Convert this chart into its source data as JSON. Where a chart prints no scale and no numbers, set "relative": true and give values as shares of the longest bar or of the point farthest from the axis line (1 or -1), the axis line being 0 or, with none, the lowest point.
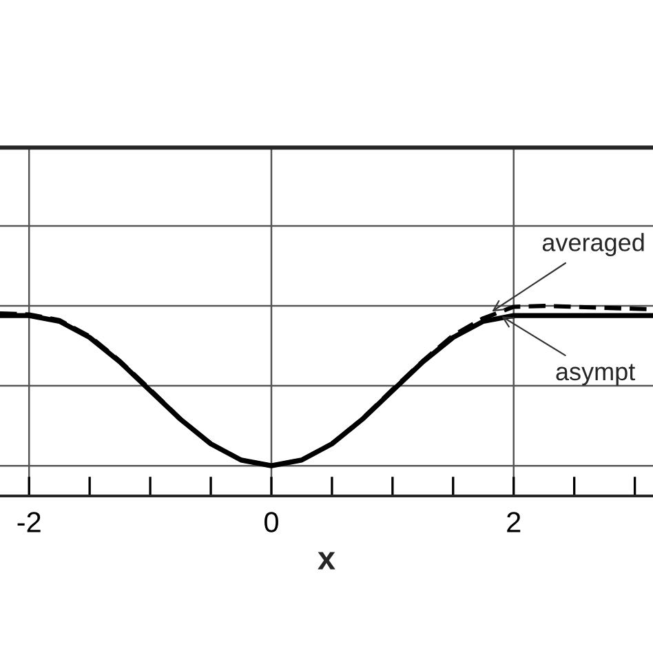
{
  "chart_data": {
    "type": "line",
    "relative": true,
    "xlabel": "x",
    "xlim": [
      -2.24,
      3.15
    ],
    "xticks": [
      -2,
      {
        "value": -1.5,
        "label": null
      },
      {
        "value": -1,
        "label": null
      },
      {
        "value": -0.5,
        "label": null
      },
      0,
      {
        "value": 0.5,
        "label": null
      },
      {
        "value": 1,
        "label": null
      },
      {
        "value": 1.5,
        "label": null
      },
      2,
      {
        "value": 2.5,
        "label": null
      },
      {
        "value": 3,
        "label": null
      }
    ],
    "grid": true,
    "legend": false,
    "tick_labels": "x",
    "x": [
      -2.24,
      -2,
      -1.75,
      -1.5,
      -1.25,
      -1,
      -0.75,
      -0.5,
      -0.25,
      0,
      0.25,
      0.5,
      0.75,
      1,
      1.25,
      1.5,
      1.75,
      2,
      2.25,
      2.5,
      3,
      3.15
    ],
    "series": [
      {
        "color": "#000000",
        "line_style": "dashed",
        "values": [
          0.96,
          0.955,
          0.925,
          0.84,
          0.71,
          0.56,
          0.405,
          0.275,
          0.19,
          0.159,
          0.19,
          0.275,
          0.405,
          0.56,
          0.71,
          0.845,
          0.935,
          0.995,
          1.0,
          0.995,
          0.985,
          0.982
        ]
      },
      {
        "color": "#000000",
        "line_style": "solid",
        "values": [
          0.949,
          0.949,
          0.919,
          0.834,
          0.705,
          0.554,
          0.403,
          0.274,
          0.189,
          0.159,
          0.189,
          0.274,
          0.403,
          0.554,
          0.705,
          0.834,
          0.919,
          0.949,
          0.949,
          0.949,
          0.949,
          0.949
        ]
      }
    ],
    "annotations": [
      {
        "text": "averaged",
        "x": 1.82,
        "y": 0.97
      },
      {
        "text": "asympt",
        "x": 1.9,
        "y": 0.945
      }
    ]
  }
}
